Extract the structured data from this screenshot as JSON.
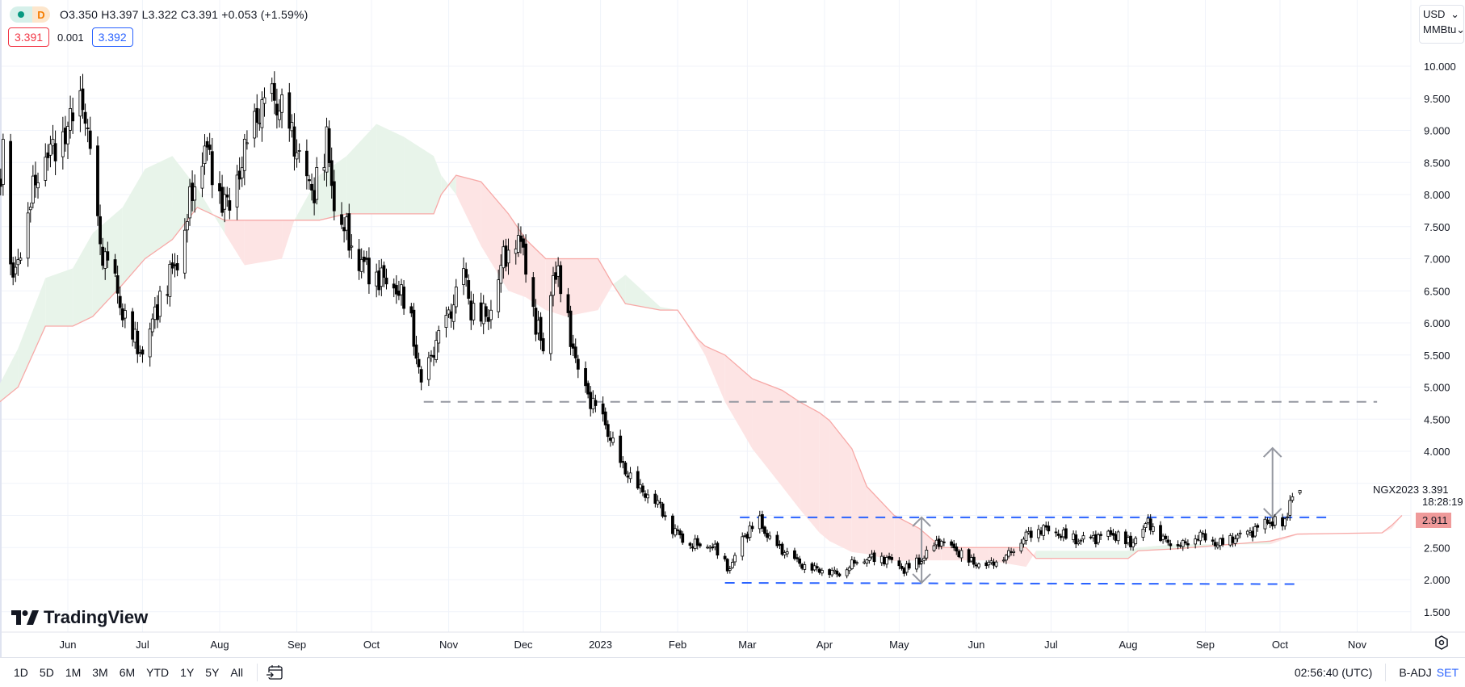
{
  "legend": {
    "interval": "D",
    "ohlc_text": "O3.350 H3.397 L3.322 C3.391 +0.053 (+1.59%)",
    "bid": "3.391",
    "spread": "0.001",
    "ask": "3.392"
  },
  "units": {
    "currency": "USD",
    "unit": "MMBtu"
  },
  "logo": "TradingView",
  "toolbar": {
    "ranges": [
      "1D",
      "5D",
      "1M",
      "3M",
      "6M",
      "YTD",
      "1Y",
      "5Y",
      "All"
    ],
    "time": "02:56:40 (UTC)",
    "adj": "B-ADJ",
    "set": "SET"
  },
  "chart_data": {
    "type": "candlestick",
    "symbol_label": "NGX2023",
    "last_price": "3.391",
    "countdown": "18:28:19",
    "cloud_label": "2.911",
    "ylim": [
      1.25,
      10.3
    ],
    "yticks": [
      "10.000",
      "9.500",
      "9.000",
      "8.500",
      "8.000",
      "7.500",
      "7.000",
      "6.500",
      "6.000",
      "5.500",
      "5.000",
      "4.500",
      "4.000",
      "3.500",
      "3.000",
      "2.500",
      "2.000",
      "1.500"
    ],
    "xticks": [
      {
        "label": "Jun",
        "date": "2022-06-01"
      },
      {
        "label": "Jul",
        "date": "2022-07-01"
      },
      {
        "label": "Aug",
        "date": "2022-08-01"
      },
      {
        "label": "Sep",
        "date": "2022-09-01"
      },
      {
        "label": "Oct",
        "date": "2022-10-01"
      },
      {
        "label": "Nov",
        "date": "2022-11-01"
      },
      {
        "label": "Dec",
        "date": "2022-12-01"
      },
      {
        "label": "2023",
        "date": "2023-01-01"
      },
      {
        "label": "Feb",
        "date": "2023-02-01"
      },
      {
        "label": "Mar",
        "date": "2023-03-01"
      },
      {
        "label": "Apr",
        "date": "2023-04-01"
      },
      {
        "label": "May",
        "date": "2023-05-01"
      },
      {
        "label": "Jun",
        "date": "2023-06-01"
      },
      {
        "label": "Jul",
        "date": "2023-07-01"
      },
      {
        "label": "Aug",
        "date": "2023-08-01"
      },
      {
        "label": "Sep",
        "date": "2023-09-01"
      },
      {
        "label": "Oct",
        "date": "2023-10-01"
      },
      {
        "label": "Nov",
        "date": "2023-11-01"
      }
    ],
    "close_anchors": [
      [
        "2022-05-04",
        8.0
      ],
      [
        "2022-05-06",
        8.8
      ],
      [
        "2022-05-10",
        6.6
      ],
      [
        "2022-05-16",
        7.8
      ],
      [
        "2022-05-23",
        8.7
      ],
      [
        "2022-05-27",
        8.7
      ],
      [
        "2022-06-07",
        9.5
      ],
      [
        "2022-06-10",
        8.6
      ],
      [
        "2022-06-14",
        7.2
      ],
      [
        "2022-06-20",
        6.6
      ],
      [
        "2022-06-24",
        6.0
      ],
      [
        "2022-07-01",
        5.5
      ],
      [
        "2022-07-08",
        6.4
      ],
      [
        "2022-07-15",
        7.0
      ],
      [
        "2022-07-22",
        8.2
      ],
      [
        "2022-07-26",
        8.8
      ],
      [
        "2022-08-01",
        8.0
      ],
      [
        "2022-08-05",
        7.8
      ],
      [
        "2022-08-12",
        8.8
      ],
      [
        "2022-08-17",
        9.3
      ],
      [
        "2022-08-22",
        9.5
      ],
      [
        "2022-08-26",
        9.3
      ],
      [
        "2022-09-02",
        8.6
      ],
      [
        "2022-09-07",
        8.0
      ],
      [
        "2022-09-13",
        8.8
      ],
      [
        "2022-09-16",
        7.9
      ],
      [
        "2022-09-22",
        7.3
      ],
      [
        "2022-09-28",
        6.9
      ],
      [
        "2022-10-05",
        6.7
      ],
      [
        "2022-10-12",
        6.5
      ],
      [
        "2022-10-17",
        6.0
      ],
      [
        "2022-10-21",
        5.0
      ],
      [
        "2022-10-26",
        5.6
      ],
      [
        "2022-11-02",
        6.2
      ],
      [
        "2022-11-07",
        6.8
      ],
      [
        "2022-11-10",
        6.2
      ],
      [
        "2022-11-17",
        6.1
      ],
      [
        "2022-11-22",
        6.9
      ],
      [
        "2022-11-28",
        7.4
      ],
      [
        "2022-12-02",
        7.0
      ],
      [
        "2022-12-06",
        6.0
      ],
      [
        "2022-12-09",
        5.6
      ],
      [
        "2022-12-13",
        6.8
      ],
      [
        "2022-12-16",
        6.6
      ],
      [
        "2022-12-20",
        5.8
      ],
      [
        "2022-12-23",
        5.2
      ],
      [
        "2022-12-28",
        4.8
      ],
      [
        "2023-01-03",
        4.4
      ],
      [
        "2023-01-09",
        3.8
      ],
      [
        "2023-01-17",
        3.4
      ],
      [
        "2023-01-24",
        3.2
      ],
      [
        "2023-01-30",
        2.8
      ],
      [
        "2023-02-06",
        2.55
      ],
      [
        "2023-02-13",
        2.55
      ],
      [
        "2023-02-17",
        2.45
      ],
      [
        "2023-02-22",
        2.15
      ],
      [
        "2023-02-27",
        2.65
      ],
      [
        "2023-03-06",
        2.9
      ],
      [
        "2023-03-10",
        2.6
      ],
      [
        "2023-03-17",
        2.4
      ],
      [
        "2023-03-24",
        2.2
      ],
      [
        "2023-03-31",
        2.15
      ],
      [
        "2023-04-07",
        2.1
      ],
      [
        "2023-04-14",
        2.3
      ],
      [
        "2023-04-21",
        2.35
      ],
      [
        "2023-04-28",
        2.3
      ],
      [
        "2023-05-03",
        2.15
      ],
      [
        "2023-05-10",
        2.3
      ],
      [
        "2023-05-17",
        2.6
      ],
      [
        "2023-05-24",
        2.45
      ],
      [
        "2023-05-31",
        2.25
      ],
      [
        "2023-06-07",
        2.25
      ],
      [
        "2023-06-14",
        2.4
      ],
      [
        "2023-06-21",
        2.7
      ],
      [
        "2023-06-28",
        2.8
      ],
      [
        "2023-07-05",
        2.7
      ],
      [
        "2023-07-12",
        2.6
      ],
      [
        "2023-07-19",
        2.65
      ],
      [
        "2023-07-26",
        2.7
      ],
      [
        "2023-08-02",
        2.55
      ],
      [
        "2023-08-09",
        2.9
      ],
      [
        "2023-08-16",
        2.6
      ],
      [
        "2023-08-23",
        2.55
      ],
      [
        "2023-08-30",
        2.7
      ],
      [
        "2023-09-06",
        2.55
      ],
      [
        "2023-09-13",
        2.65
      ],
      [
        "2023-09-20",
        2.75
      ],
      [
        "2023-09-27",
        2.9
      ],
      [
        "2023-10-03",
        2.85
      ],
      [
        "2023-10-05",
        3.25
      ],
      [
        "2023-10-09",
        3.391
      ]
    ],
    "ichimoku_cloud": [
      [
        "2022-05-04",
        5.0,
        4.75
      ],
      [
        "2022-05-12",
        5.6,
        5.0
      ],
      [
        "2022-05-23",
        6.7,
        5.95
      ],
      [
        "2022-06-03",
        6.85,
        5.95
      ],
      [
        "2022-06-11",
        7.4,
        6.1
      ],
      [
        "2022-06-23",
        7.8,
        6.6
      ],
      [
        "2022-07-02",
        8.4,
        7.0
      ],
      [
        "2022-07-13",
        8.6,
        7.3
      ],
      [
        "2022-07-23",
        8.1,
        7.8
      ],
      [
        "2022-08-03",
        7.4,
        7.6
      ],
      [
        "2022-08-11",
        6.9,
        7.6
      ],
      [
        "2022-08-26",
        7.0,
        7.6
      ],
      [
        "2022-08-31",
        7.6,
        7.6
      ],
      [
        "2022-09-10",
        8.3,
        7.6
      ],
      [
        "2022-09-21",
        8.6,
        7.7
      ],
      [
        "2022-10-03",
        9.1,
        7.7
      ],
      [
        "2022-10-14",
        8.9,
        7.7
      ],
      [
        "2022-10-26",
        8.6,
        7.7
      ],
      [
        "2022-10-29",
        8.3,
        8.0
      ],
      [
        "2022-11-04",
        8.0,
        8.3
      ],
      [
        "2022-11-14",
        7.2,
        8.2
      ],
      [
        "2022-11-25",
        6.5,
        7.7
      ],
      [
        "2022-12-02",
        6.4,
        7.3
      ],
      [
        "2022-12-10",
        6.2,
        7.0
      ],
      [
        "2022-12-18",
        6.1,
        7.0
      ],
      [
        "2022-12-31",
        6.2,
        7.0
      ],
      [
        "2023-01-06",
        6.6,
        6.6
      ],
      [
        "2023-01-11",
        6.75,
        6.3
      ],
      [
        "2023-01-25",
        6.25,
        6.2
      ],
      [
        "2023-02-01",
        6.2,
        6.2
      ],
      [
        "2023-02-09",
        5.7,
        5.75
      ],
      [
        "2023-02-12",
        5.5,
        5.64
      ],
      [
        "2023-02-20",
        4.77,
        5.5
      ],
      [
        "2023-03-03",
        4.04,
        5.13
      ],
      [
        "2023-03-15",
        3.45,
        4.95
      ],
      [
        "2023-03-22",
        3.1,
        4.77
      ],
      [
        "2023-03-30",
        2.73,
        4.6
      ],
      [
        "2023-04-03",
        2.6,
        4.48
      ],
      [
        "2023-04-12",
        2.43,
        4.04
      ],
      [
        "2023-04-18",
        2.4,
        3.45
      ],
      [
        "2023-04-29",
        2.29,
        3.0
      ],
      [
        "2023-05-09",
        2.3,
        2.8
      ],
      [
        "2023-05-18",
        2.3,
        2.5
      ],
      [
        "2023-06-06",
        2.3,
        2.5
      ],
      [
        "2023-06-21",
        2.2,
        2.5
      ],
      [
        "2023-06-25",
        2.45,
        2.33
      ],
      [
        "2023-08-01",
        2.45,
        2.33
      ],
      [
        "2023-08-05",
        2.5,
        2.45
      ],
      [
        "2023-08-20",
        2.55,
        2.48
      ],
      [
        "2023-09-27",
        2.55,
        2.6
      ],
      [
        "2023-10-08",
        2.7,
        2.71
      ],
      [
        "2023-11-11",
        2.72,
        2.73
      ],
      [
        "2023-11-15",
        2.8,
        2.85
      ],
      [
        "2023-11-19",
        3.0,
        3.0
      ]
    ],
    "hlines": [
      {
        "name": "support-4-77",
        "price": 4.77,
        "from": "2022-10-22",
        "to": "2023-11-09",
        "color": "#9598a1"
      },
      {
        "name": "range-top",
        "price": 2.97,
        "from": "2023-02-26",
        "to": "2023-10-20",
        "color": "#2962ff"
      },
      {
        "name": "range-bottom",
        "price": 1.95,
        "price_end": 1.93,
        "from": "2023-02-20",
        "to": "2023-10-08",
        "color": "#2962ff"
      }
    ],
    "arrows": [
      {
        "date": "2023-05-10",
        "from": 1.95,
        "to": 2.97
      },
      {
        "date": "2023-09-28",
        "from": 2.97,
        "to": 4.05
      }
    ],
    "colors": {
      "up": "#ffffff",
      "down": "#000000",
      "cloud_green": "#e8f4ea",
      "cloud_red": "#fde4e4",
      "span_b": "#f7a9a7",
      "grid": "#f0f3fa",
      "label_bg": "#ef9a9a"
    }
  }
}
